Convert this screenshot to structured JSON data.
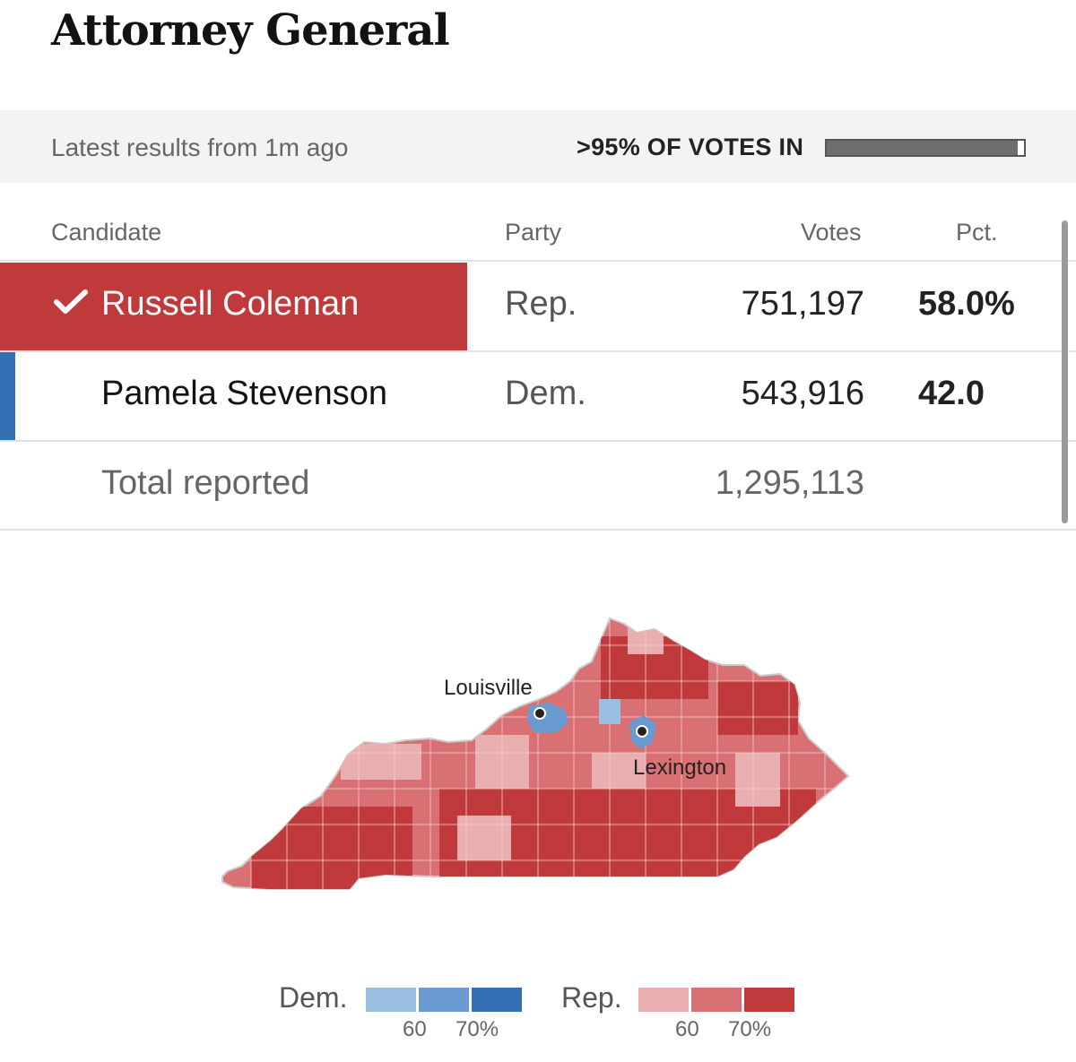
{
  "title": "Attorney General",
  "status": {
    "latest": "Latest results from 1m ago",
    "votes_in_label": ">95% OF VOTES IN",
    "votes_in_fraction": 0.97
  },
  "table": {
    "headers": {
      "candidate": "Candidate",
      "party": "Party",
      "votes": "Votes",
      "pct": "Pct."
    },
    "rows": [
      {
        "name": "Russell Coleman",
        "party": "Rep.",
        "votes": "751,197",
        "pct": "58.0%",
        "winner": true,
        "color": "#c03a3b"
      },
      {
        "name": "Pamela Stevenson",
        "party": "Dem.",
        "votes": "543,916",
        "pct": "42.0",
        "winner": false,
        "color": "#3570b5"
      }
    ],
    "total_label": "Total reported",
    "total_votes": "1,295,113"
  },
  "map": {
    "cities": [
      "Louisville",
      "Lexington"
    ],
    "icons": [
      "checkmark-icon",
      "city-marker-icon"
    ]
  },
  "legend": {
    "dem_label": "Dem.",
    "rep_label": "Rep.",
    "dem_colors": [
      "#9bbfe0",
      "#6a9bd0",
      "#3570b5"
    ],
    "rep_colors": [
      "#e8aeb0",
      "#d87074",
      "#c03a3b"
    ],
    "tick_60": "60",
    "tick_70": "70%"
  }
}
